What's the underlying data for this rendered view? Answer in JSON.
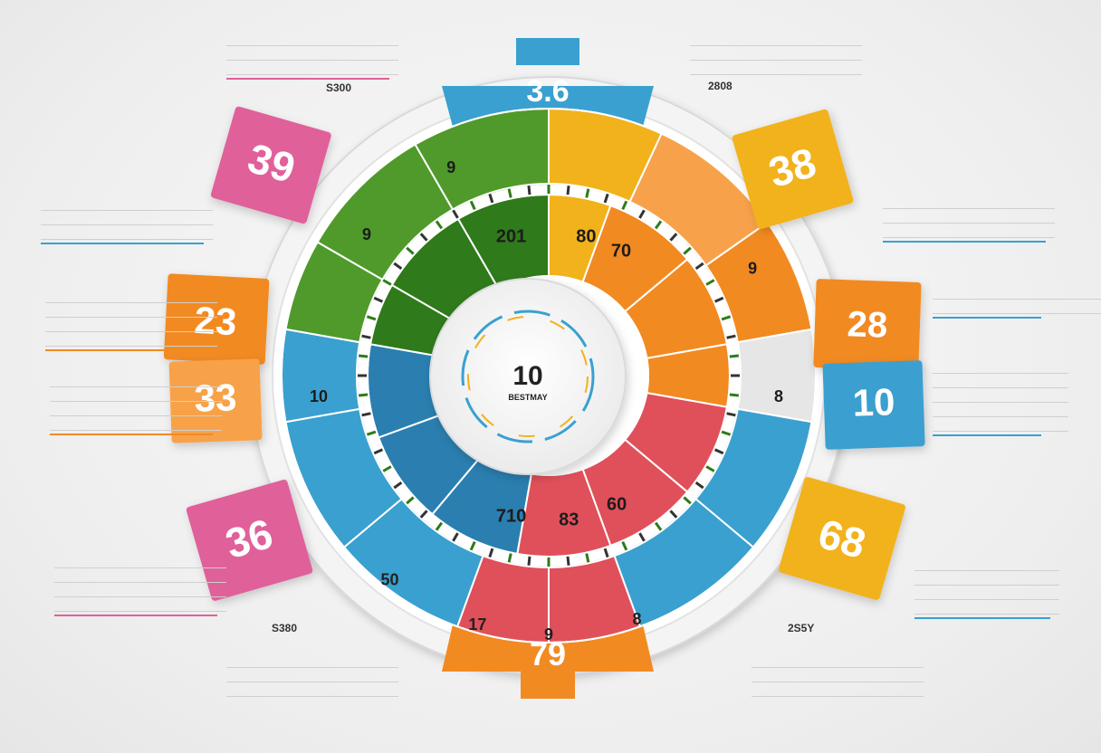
{
  "colors": {
    "green": "#4f9a2b",
    "dark_green": "#2f7a1a",
    "yellow": "#f2b21c",
    "orange": "#f28a22",
    "light_orange": "#f7a24a",
    "blue": "#3aa0cf",
    "dark_blue": "#2a7fb0",
    "pink": "#e0609a",
    "red": "#e0505a",
    "grey": "#e6e6e6"
  },
  "hub": {
    "value": "10",
    "label": "BESTMAY"
  },
  "wheel_labels": [
    {
      "text": "201",
      "ring": "inner",
      "angle": 345
    },
    {
      "text": "80",
      "ring": "inner",
      "angle": 15
    },
    {
      "text": "70",
      "ring": "inner",
      "angle": 30
    },
    {
      "text": "9",
      "ring": "outer",
      "angle": 335
    },
    {
      "text": "9",
      "ring": "outer",
      "angle": 308
    },
    {
      "text": "10",
      "ring": "outer",
      "angle": 265
    },
    {
      "text": "8",
      "ring": "outer",
      "angle": 95
    },
    {
      "text": "9",
      "ring": "outer",
      "angle": 62
    },
    {
      "text": "710",
      "ring": "inner",
      "angle": 195
    },
    {
      "text": "83",
      "ring": "inner",
      "angle": 172
    },
    {
      "text": "60",
      "ring": "inner",
      "angle": 152
    },
    {
      "text": "9",
      "ring": "rim",
      "angle": 180
    },
    {
      "text": "17",
      "ring": "rim",
      "angle": 196
    },
    {
      "text": "8",
      "ring": "rim",
      "angle": 160
    },
    {
      "text": "50",
      "ring": "rim",
      "angle": 218
    }
  ],
  "tabs": [
    {
      "text": "3.6",
      "color": "blue",
      "pos": "top"
    },
    {
      "text": "79",
      "color": "orange",
      "pos": "bottom"
    }
  ],
  "sticky_notes": [
    {
      "text": "39",
      "color": "pink",
      "name": "note-left-top"
    },
    {
      "text": "23",
      "color": "orange",
      "name": "note-left-mid"
    },
    {
      "text": "33",
      "color": "orange",
      "name": "note-left-low"
    },
    {
      "text": "36",
      "color": "pink",
      "name": "note-left-bottom"
    },
    {
      "text": "38",
      "color": "yellow",
      "name": "note-right-top"
    },
    {
      "text": "28",
      "color": "orange",
      "name": "note-right-mid"
    },
    {
      "text": "10",
      "color": "blue",
      "name": "note-right-low"
    },
    {
      "text": "68",
      "color": "yellow",
      "name": "note-right-bottom"
    }
  ],
  "callouts": {
    "top_left_value": "S300",
    "top_right_value": "2808",
    "bottom_left_value": "S380",
    "bottom_right_value": "2S5Y"
  }
}
